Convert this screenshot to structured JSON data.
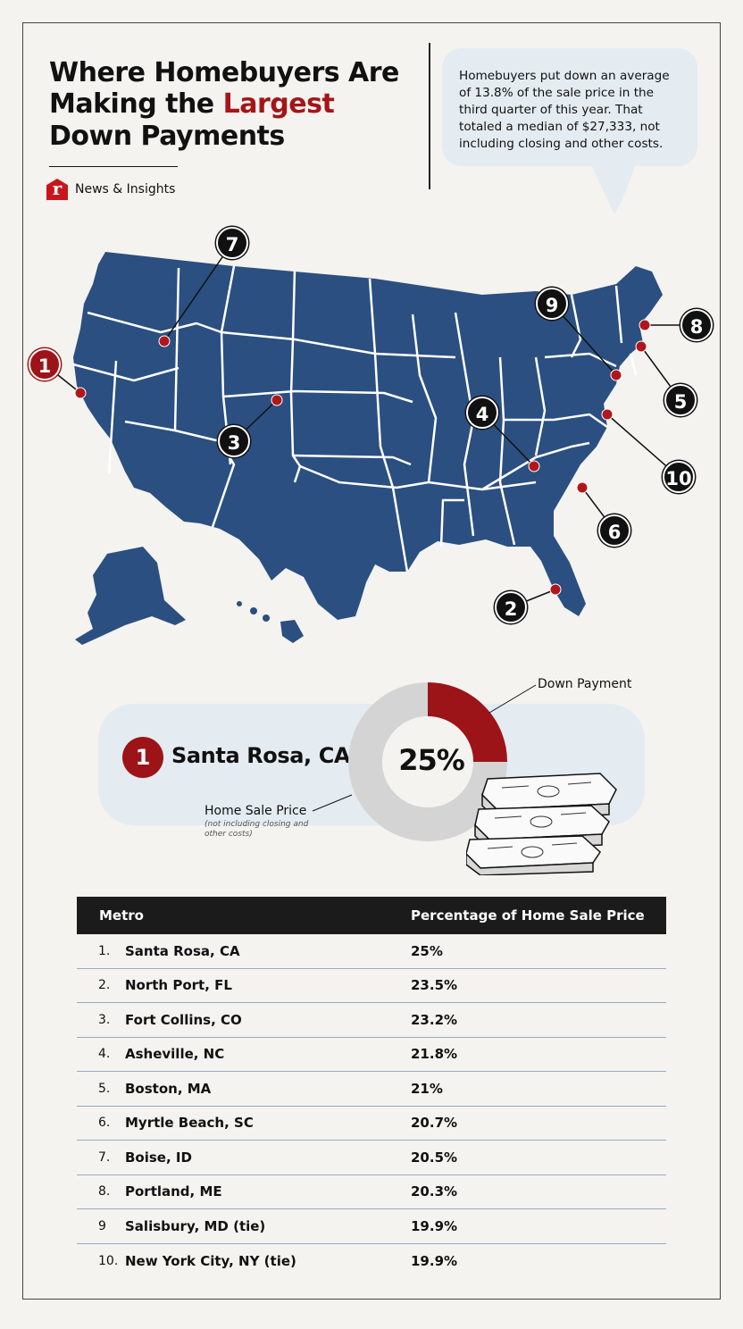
{
  "header": {
    "title_pre": "Where Homebuyers Are Making the ",
    "title_highlight": "Largest",
    "title_post": " Down Payments",
    "brand": "News & Insights"
  },
  "callout": {
    "text": "Homebuyers put down an average of 13.8% of the sale price in the third quarter of this year. That totaled a median of $27,333, not including closing and other costs."
  },
  "map_markers": [
    "1",
    "2",
    "3",
    "4",
    "5",
    "6",
    "7",
    "8",
    "9",
    "10"
  ],
  "highlight": {
    "rank": "1",
    "metro": "Santa Rosa, CA",
    "percent_label": "25%",
    "down_payment_fraction": 0.25,
    "down_payment_label": "Down Payment",
    "home_sale_price_label": "Home Sale Price",
    "home_sale_price_note": "(not including closing and other costs)"
  },
  "colors": {
    "accent": "#9c1418",
    "map": "#2b4f80",
    "bubble": "#e4ebf1"
  },
  "table": {
    "headers": [
      "Metro",
      "Percentage of Home Sale Price"
    ],
    "rows": [
      {
        "rank": "1.",
        "metro": "Santa Rosa, CA",
        "pct": "25%"
      },
      {
        "rank": "2.",
        "metro": "North Port, FL",
        "pct": "23.5%"
      },
      {
        "rank": "3.",
        "metro": "Fort Collins, CO",
        "pct": "23.2%"
      },
      {
        "rank": "4.",
        "metro": "Asheville, NC",
        "pct": "21.8%"
      },
      {
        "rank": "5.",
        "metro": "Boston, MA",
        "pct": "21%"
      },
      {
        "rank": "6.",
        "metro": "Myrtle Beach, SC",
        "pct": "20.7%"
      },
      {
        "rank": "7.",
        "metro": "Boise, ID",
        "pct": "20.5%"
      },
      {
        "rank": "8.",
        "metro": "Portland, ME",
        "pct": "20.3%"
      },
      {
        "rank": "9",
        "metro": "Salisbury, MD (tie)",
        "pct": "19.9%"
      },
      {
        "rank": "10.",
        "metro": "New York City, NY (tie)",
        "pct": "19.9%"
      }
    ]
  }
}
